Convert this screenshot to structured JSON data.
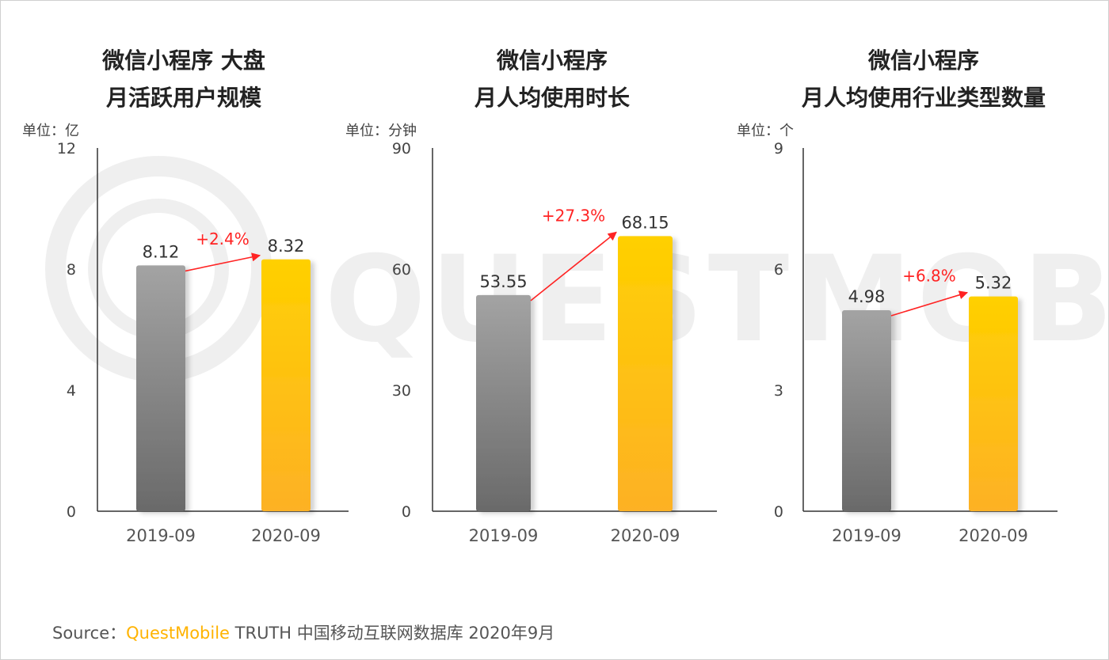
{
  "chart_data": [
    {
      "type": "bar",
      "title": [
        "微信小程序 大盘",
        "月活跃用户规模"
      ],
      "unit": "单位：亿",
      "categories": [
        "2019-09",
        "2020-09"
      ],
      "values": [
        8.12,
        8.32
      ],
      "value_labels": [
        "8.12",
        "8.32"
      ],
      "growth": "+2.4%",
      "ylim": [
        0,
        12
      ],
      "yticks": [
        0,
        4,
        8,
        12
      ]
    },
    {
      "type": "bar",
      "title": [
        "微信小程序",
        "月人均使用时长"
      ],
      "unit": "单位：分钟",
      "categories": [
        "2019-09",
        "2020-09"
      ],
      "values": [
        53.55,
        68.15
      ],
      "value_labels": [
        "53.55",
        "68.15"
      ],
      "growth": "+27.3%",
      "ylim": [
        0,
        90
      ],
      "yticks": [
        0,
        30,
        60,
        90
      ]
    },
    {
      "type": "bar",
      "title": [
        "微信小程序",
        "月人均使用行业类型数量"
      ],
      "unit": "单位：个",
      "categories": [
        "2019-09",
        "2020-09"
      ],
      "values": [
        4.98,
        5.32
      ],
      "value_labels": [
        "4.98",
        "5.32"
      ],
      "growth": "+6.8%",
      "ylim": [
        0,
        9
      ],
      "yticks": [
        0,
        3,
        6,
        9
      ]
    }
  ],
  "colors": {
    "bar_2019": "#7a7a7a",
    "bar_2020": "#ffc107",
    "growth": "#ff2323"
  },
  "watermark": "QUESTMOBILE",
  "source": {
    "prefix": "Source：",
    "brand": "QuestMobile",
    "suffix": " TRUTH 中国移动互联网数据库 2020年9月"
  }
}
